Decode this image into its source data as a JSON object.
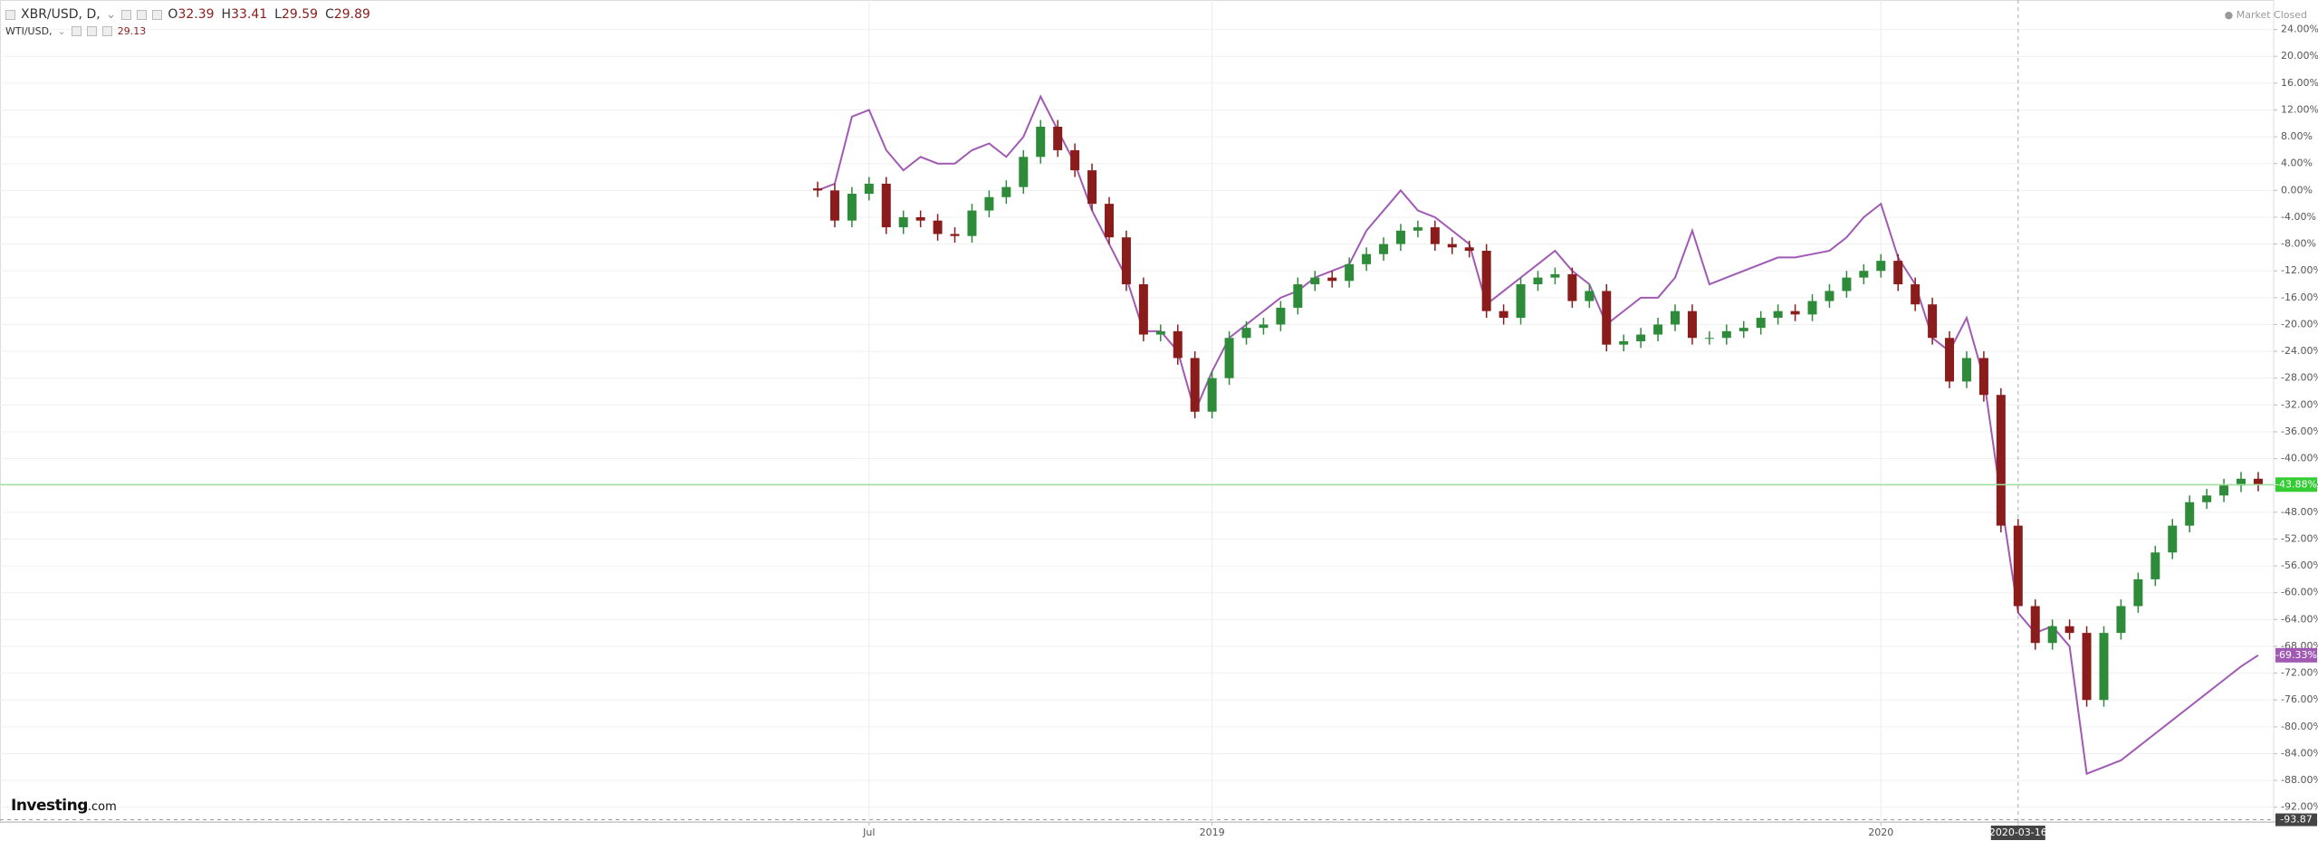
{
  "header": {
    "ohlc": [
      {
        "key": "O",
        "value": "32.39"
      },
      {
        "key": "H",
        "value": "33.41"
      },
      {
        "key": "L",
        "value": "29.59"
      },
      {
        "key": "C",
        "value": "29.89"
      }
    ],
    "compare_value": "29.13",
    "status": "Market Closed",
    "brand": "Investing",
    "brand_suffix": ".com"
  },
  "chart_data": {
    "type": "candlestick",
    "categories": [
      null,
      null,
      null,
      "Jul",
      null,
      null,
      null,
      null,
      null,
      null,
      null,
      null,
      null,
      null,
      null,
      null,
      null,
      null,
      null,
      null,
      null,
      null,
      null,
      "2019",
      null,
      null,
      null,
      null,
      null,
      null,
      null,
      null,
      null,
      null,
      null,
      null,
      null,
      null,
      null,
      null,
      null,
      null,
      null,
      null,
      null,
      null,
      null,
      null,
      null,
      null,
      null,
      null,
      null,
      null,
      null,
      null,
      null,
      null,
      null,
      null,
      null,
      null,
      "2020",
      null,
      null,
      null,
      null,
      null,
      null,
      null,
      "2020-03-16",
      null,
      null,
      null,
      null,
      null,
      null,
      null,
      null,
      null,
      null,
      null,
      null,
      null,
      null
    ],
    "series": [
      {
        "name": "XBR/USD, D,",
        "type": "candlestick",
        "up_color": "#2e8b3a",
        "down_color": "#8b1c1c",
        "last_color": "#33cc33",
        "last_label": "-43.88%",
        "last_value": -43.88,
        "open": [
          0.3,
          0,
          -4.5,
          -0.5,
          1,
          -5.5,
          -4,
          -4.5,
          -6.5,
          -6.8,
          -3,
          -1,
          0.5,
          5,
          9.5,
          6,
          3,
          -2,
          -7,
          -14,
          -21.5,
          -21,
          -25,
          -33,
          -28,
          -22,
          -20.5,
          -20,
          -17.5,
          -14,
          -13,
          -13.5,
          -11,
          -9.5,
          -8,
          -6,
          -5.5,
          -8,
          -8.5,
          -9,
          -18,
          -19,
          -14,
          -13,
          -12.5,
          -16.5,
          -15,
          -23,
          -22.5,
          -21.5,
          -20,
          -18,
          -22,
          -22,
          -21,
          -20.5,
          -19,
          -18,
          -18.5,
          -16.5,
          -15,
          -13,
          -12,
          -10.5,
          -14,
          -17,
          -22,
          -28.5,
          -25,
          -30.5,
          -50,
          -62,
          -67.5,
          -65,
          -66,
          -76,
          -66,
          -62,
          -58,
          -54,
          -50,
          -46.5,
          -45.5,
          -44,
          -43
        ],
        "high": [
          1.3,
          1,
          0.5,
          2,
          2,
          -3,
          -3,
          -3.5,
          -5.5,
          -2,
          0,
          1.5,
          6,
          10.5,
          10.5,
          7,
          4,
          -1,
          -6,
          -13,
          -20,
          -20,
          -24,
          -27,
          -21,
          -19.5,
          -19,
          -16.5,
          -13,
          -12,
          -12,
          -10,
          -8.5,
          -7,
          -5,
          -4.5,
          -4.5,
          -7,
          -7.5,
          -8,
          -17,
          -13,
          -12,
          -11.5,
          -11.5,
          -14,
          -14,
          -21.5,
          -20.5,
          -19,
          -17,
          -17,
          -21,
          -20,
          -19.5,
          -18,
          -17,
          -17,
          -15.5,
          -14,
          -12,
          -11,
          -9.5,
          -9.5,
          -13,
          -16,
          -21,
          -24,
          -24,
          -29.5,
          -49,
          -61,
          -64,
          -64,
          -65,
          -65,
          -61,
          -57,
          -53,
          -49,
          -45.5,
          -44.5,
          -43,
          -42,
          -42
        ],
        "low": [
          -1,
          -5.5,
          -5.5,
          -1.5,
          -6.5,
          -6.5,
          -5.5,
          -7.5,
          -7.8,
          -7.8,
          -4,
          -2,
          -0.5,
          4,
          5,
          2,
          -3,
          -8,
          -15,
          -22.5,
          -22.5,
          -26,
          -34,
          -34,
          -29,
          -23,
          -21.5,
          -21,
          -18.5,
          -15,
          -14.5,
          -14.5,
          -12,
          -10.5,
          -9,
          -7,
          -9,
          -9.5,
          -10,
          -19,
          -20,
          -20,
          -15,
          -14,
          -17.5,
          -17.5,
          -24,
          -24,
          -23.5,
          -22.5,
          -21,
          -23,
          -23,
          -23,
          -22,
          -21.5,
          -20,
          -19.5,
          -19.5,
          -17.5,
          -16,
          -14,
          -13,
          -15,
          -18,
          -23,
          -29.5,
          -29.5,
          -31.5,
          -51,
          -63,
          -68.5,
          -68.5,
          -67,
          -77,
          -77,
          -67,
          -63,
          -59,
          -55,
          -51,
          -47.5,
          -46.5,
          -45,
          -44.88
        ],
        "close": [
          0,
          -4.5,
          -0.5,
          1,
          -5.5,
          -4,
          -4.5,
          -6.5,
          -6.8,
          -3,
          -1,
          0.5,
          5,
          9.5,
          6,
          3,
          -2,
          -7,
          -14,
          -21.5,
          -21,
          -25,
          -33,
          -28,
          -22,
          -20.5,
          -20,
          -17.5,
          -14,
          -13,
          -13.5,
          -11,
          -9.5,
          -8,
          -6,
          -5.5,
          -8,
          -8.5,
          -9,
          -18,
          -19,
          -14,
          -13,
          -12.5,
          -16.5,
          -15,
          -23,
          -22.5,
          -21.5,
          -20,
          -18,
          -22,
          -22,
          -21,
          -20.5,
          -19,
          -18,
          -18.5,
          -16.5,
          -15,
          -13,
          -12,
          -10.5,
          -14,
          -17,
          -22,
          -28.5,
          -25,
          -30.5,
          -50,
          -62,
          -67.5,
          -65,
          -66,
          -76,
          -66,
          -62,
          -58,
          -54,
          -50,
          -46.5,
          -45.5,
          -44,
          -43,
          -43.88
        ]
      },
      {
        "name": "WTI/USD,",
        "type": "line",
        "color": "#a05ab4",
        "last_label": "-69.33%",
        "last_value": -69.33,
        "values": [
          0,
          1,
          11,
          12,
          6,
          3,
          5,
          4,
          4,
          6,
          7,
          5,
          8,
          14,
          9,
          4,
          -3,
          -8,
          -13,
          -21,
          -21,
          -24,
          -33,
          -27,
          -22,
          -20,
          -18,
          -16,
          -15,
          -13,
          -12,
          -11,
          -6,
          -3,
          0,
          -3,
          -4,
          -6,
          -8,
          -17,
          -15,
          -13,
          -11,
          -9,
          -12,
          -14,
          -20,
          -18,
          -16,
          -16,
          -13,
          -6,
          -14,
          -13,
          -12,
          -11,
          -10,
          -10,
          -9.5,
          -9,
          -7,
          -4,
          -2,
          -10,
          -14,
          -22,
          -24,
          -19,
          -28,
          -46,
          -63,
          -66,
          -65,
          -68,
          -87,
          -86,
          -85,
          -83,
          -81,
          -79,
          -77,
          -75,
          -73,
          -71,
          -69.33
        ]
      }
    ],
    "ylim": [
      -94.2,
      28.4
    ],
    "yticks": [
      {
        "value": 24,
        "label": "24.00%"
      },
      {
        "value": 20,
        "label": "20.00%"
      },
      {
        "value": 16,
        "label": "16.00%"
      },
      {
        "value": 12,
        "label": "12.00%"
      },
      {
        "value": 8,
        "label": "8.00%"
      },
      {
        "value": 4,
        "label": "4.00%"
      },
      {
        "value": 0,
        "label": "0.00%"
      },
      {
        "value": -4,
        "label": "-4.00%"
      },
      {
        "value": -8,
        "label": "-8.00%"
      },
      {
        "value": -12,
        "label": "-12.00%"
      },
      {
        "value": -16,
        "label": "-16.00%"
      },
      {
        "value": -20,
        "label": "-20.00%"
      },
      {
        "value": -24,
        "label": "-24.00%"
      },
      {
        "value": -28,
        "label": "-28.00%"
      },
      {
        "value": -32,
        "label": "-32.00%"
      },
      {
        "value": -36,
        "label": "-36.00%"
      },
      {
        "value": -40,
        "label": "-40.00%"
      },
      {
        "value": -44,
        "label": "-44.00%"
      },
      {
        "value": -48,
        "label": "-48.00%"
      },
      {
        "value": -52,
        "label": "-52.00%"
      },
      {
        "value": -56,
        "label": "-56.00%"
      },
      {
        "value": -60,
        "label": "-60.00%"
      },
      {
        "value": -64,
        "label": "-64.00%"
      },
      {
        "value": -68,
        "label": "-68.00%"
      },
      {
        "value": -72,
        "label": "-72.00%"
      },
      {
        "value": -76,
        "label": "-76.00%"
      },
      {
        "value": -80,
        "label": "-80.00%"
      },
      {
        "value": -84,
        "label": "-84.00%"
      },
      {
        "value": -88,
        "label": "-88.00%"
      },
      {
        "value": -92,
        "label": "-92.00%"
      }
    ],
    "grid": true,
    "crosshair_y": {
      "value": -93.87,
      "label": "-93.87"
    }
  }
}
